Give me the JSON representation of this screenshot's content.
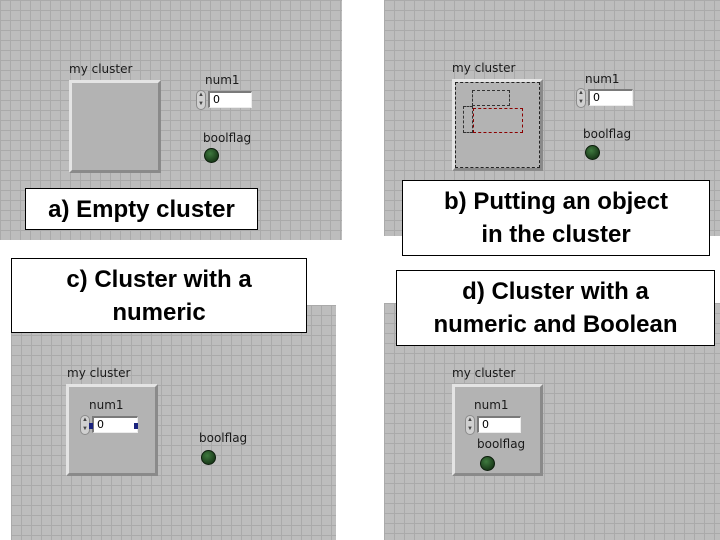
{
  "panels": [
    {
      "cluster_label": "my cluster",
      "numeric_label": "num1",
      "numeric_value": "0",
      "boolean_label": "boolflag",
      "caption": "a) Empty cluster"
    },
    {
      "cluster_label": "my cluster",
      "numeric_label": "num1",
      "numeric_value": "0",
      "boolean_label": "boolflag",
      "caption_line1": "b) Putting an object",
      "caption_line2": "in the cluster"
    },
    {
      "cluster_label": "my cluster",
      "numeric_label": "num1",
      "numeric_value": "0",
      "boolean_label": "boolflag",
      "caption_line1": "c) Cluster with a",
      "caption_line2": "numeric"
    },
    {
      "cluster_label": "my cluster",
      "numeric_label": "num1",
      "numeric_value": "0",
      "boolean_label": "boolflag",
      "caption_line1": "d) Cluster with a",
      "caption_line2": "numeric and Boolean"
    }
  ],
  "colors": {
    "panel_bg": "#bdbdbd",
    "led_off": "#2a5a2a",
    "selection_dash": "#8b0000"
  },
  "icons": [
    "spinner-icon",
    "led-indicator-icon"
  ]
}
